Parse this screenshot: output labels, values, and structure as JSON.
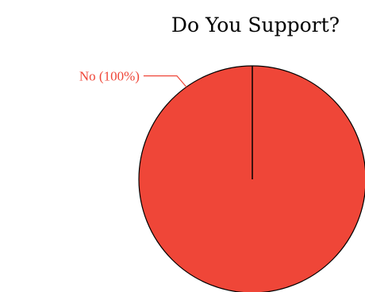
{
  "chart_data": {
    "type": "pie",
    "title": "Do You Support?",
    "slices": [
      {
        "label": "No (100%)",
        "value": 100,
        "color": "#ef4638"
      }
    ],
    "label_color": "#ef4638",
    "outline_color": "#000000"
  }
}
